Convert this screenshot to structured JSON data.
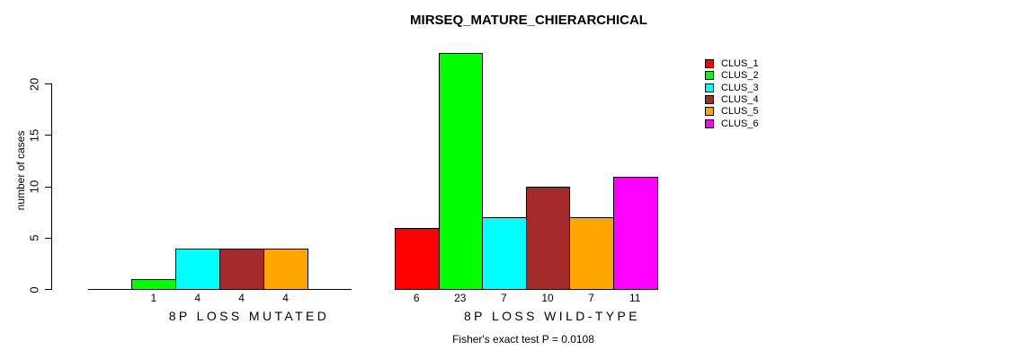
{
  "chart_data": {
    "type": "bar",
    "title": "MIRSEQ_MATURE_CHIERARCHICAL",
    "ylabel": "number of cases",
    "ylim": [
      0,
      20
    ],
    "yticks": [
      0,
      5,
      10,
      15,
      20
    ],
    "grid": false,
    "categories": [
      "CLUS_1",
      "CLUS_2",
      "CLUS_3",
      "CLUS_4",
      "CLUS_5",
      "CLUS_6"
    ],
    "colors": [
      "#ff0000",
      "#00ff00",
      "#00ffff",
      "#a52a2a",
      "#ffa500",
      "#ff00ff"
    ],
    "groups": [
      {
        "label": "8P LOSS MUTATED",
        "values": [
          0,
          1,
          4,
          4,
          4,
          0
        ]
      },
      {
        "label": "8P LOSS WILD-TYPE",
        "values": [
          6,
          23,
          7,
          10,
          7,
          11
        ]
      }
    ],
    "value_labels_show_zero": false,
    "legend": {
      "position": "top-right",
      "entries": [
        {
          "label": "CLUS_1",
          "color": "#ff0000"
        },
        {
          "label": "CLUS_2",
          "color": "#00ff00"
        },
        {
          "label": "CLUS_3",
          "color": "#00ffff"
        },
        {
          "label": "CLUS_4",
          "color": "#a52a2a"
        },
        {
          "label": "CLUS_5",
          "color": "#ffa500"
        },
        {
          "label": "CLUS_6",
          "color": "#ff00ff"
        }
      ]
    },
    "annotation": "Fisher's exact test P = 0.0108"
  }
}
